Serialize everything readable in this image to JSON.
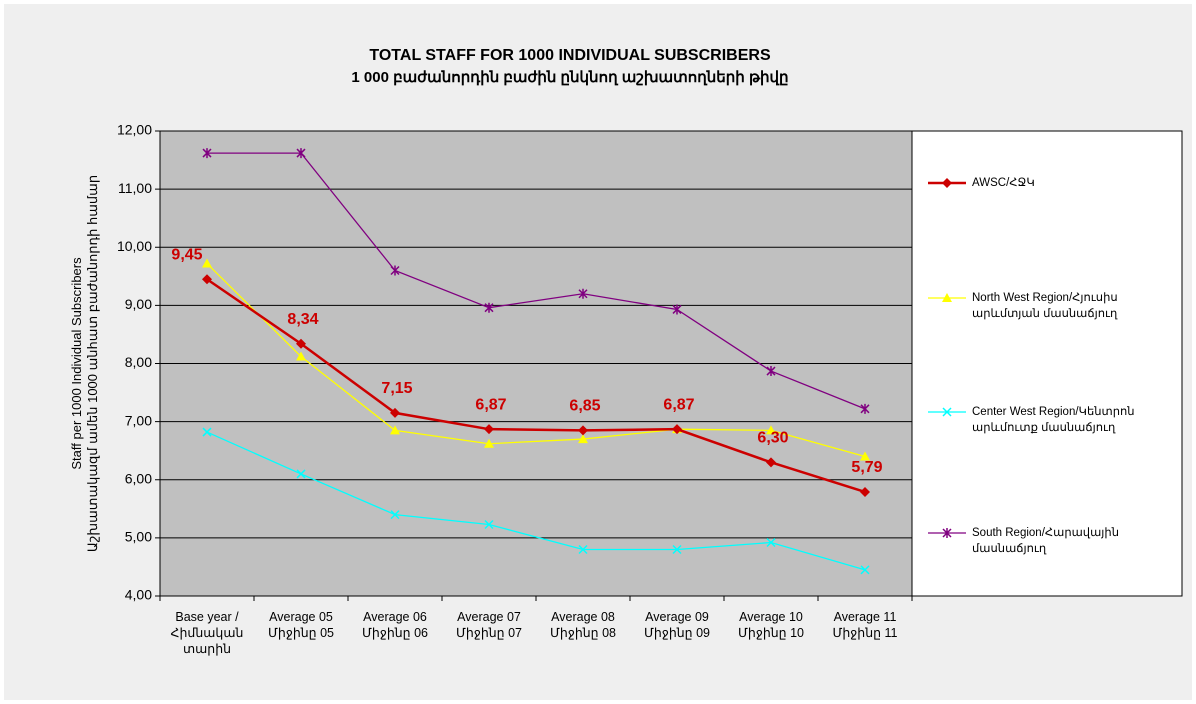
{
  "chart_data": {
    "type": "line",
    "title": "TOTAL STAFF FOR 1000 INDIVIDUAL SUBSCRIBERS",
    "subtitle": "1 000 բաժանորդին բաժին ընկնող աշխատողների թիվը",
    "y_label": "Staff per 1000 Individual Subscribers\nԱշխատակազմ ամեն 1000 անհատ բաժանորդի համար",
    "categories": [
      "Base year /\nՀիմնական\nտարին",
      "Average 05\nՄիջինը 05",
      "Average 06\nՄիջինը 06",
      "Average 07\nՄիջինը 07",
      "Average 08\nՄիջինը 08",
      "Average 09\nՄիջինը 09",
      "Average 10\nՄիջինը 10",
      "Average 11\nՄիջինը 11"
    ],
    "series": [
      {
        "name": "AWSC/ՀՋԿ",
        "color": "#cc0000",
        "marker": "diamond",
        "values": [
          9.45,
          8.34,
          7.15,
          6.87,
          6.85,
          6.87,
          6.3,
          5.79
        ],
        "value_labels": [
          "9,45",
          "8,34",
          "7,15",
          "6,87",
          "6,85",
          "6,87",
          "6,30",
          "5,79"
        ]
      },
      {
        "name": "North West Region/Հյուսիս\nարևմտյան մասնաճյուղ",
        "color": "#ffff00",
        "marker": "triangle",
        "values": [
          9.72,
          8.12,
          6.85,
          6.62,
          6.7,
          6.87,
          6.85,
          6.4
        ]
      },
      {
        "name": "Center West Region/Կենտրոն\nարևմուտք մասնաճյուղ",
        "color": "#00ffff",
        "marker": "x",
        "values": [
          6.82,
          6.1,
          5.4,
          5.23,
          4.8,
          4.8,
          4.92,
          4.45
        ]
      },
      {
        "name": "South Region/Հարավային\nմասնաճյուղ",
        "color": "#800080",
        "marker": "star",
        "values": [
          11.62,
          11.62,
          9.6,
          8.96,
          9.2,
          8.93,
          7.87,
          7.22
        ]
      }
    ],
    "ylim": [
      4,
      12
    ],
    "yticks": [
      {
        "value": 4,
        "label": "4,00"
      },
      {
        "value": 5,
        "label": "5,00"
      },
      {
        "value": 6,
        "label": "6,00"
      },
      {
        "value": 7,
        "label": "7,00"
      },
      {
        "value": 8,
        "label": "8,00"
      },
      {
        "value": 9,
        "label": "9,00"
      },
      {
        "value": 10,
        "label": "10,00"
      },
      {
        "value": 11,
        "label": "11,00"
      },
      {
        "value": 12,
        "label": "12,00"
      }
    ],
    "grid": true,
    "legend": "right",
    "plot_color": "#c0c0c0"
  }
}
